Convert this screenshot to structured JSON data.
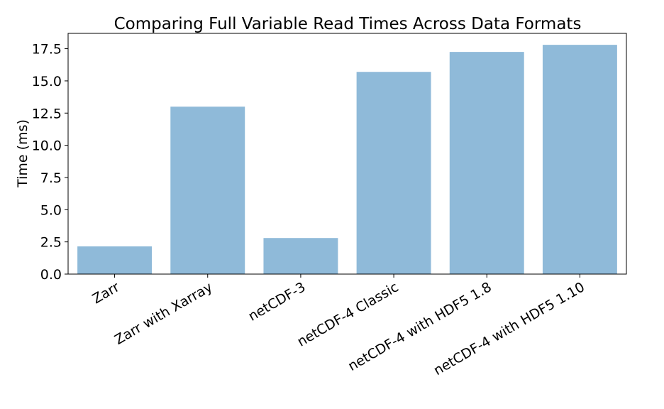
{
  "chart_data": {
    "type": "bar",
    "title": "Comparing Full Variable Read Times Across Data Formats",
    "xlabel": "",
    "ylabel": "Time (ms)",
    "categories": [
      "Zarr",
      "Zarr with Xarray",
      "netCDF-3",
      "netCDF-4 Classic",
      "netCDF-4 with HDF5 1.8",
      "netCDF-4 with HDF5 1.10"
    ],
    "values": [
      2.15,
      13.0,
      2.8,
      15.7,
      17.25,
      17.8
    ],
    "ylim": [
      0,
      18.69
    ],
    "yticks": [
      "0.0",
      "2.5",
      "5.0",
      "7.5",
      "10.0",
      "12.5",
      "15.0",
      "17.5"
    ],
    "bar_color": "#8fbad9",
    "grid": false
  }
}
